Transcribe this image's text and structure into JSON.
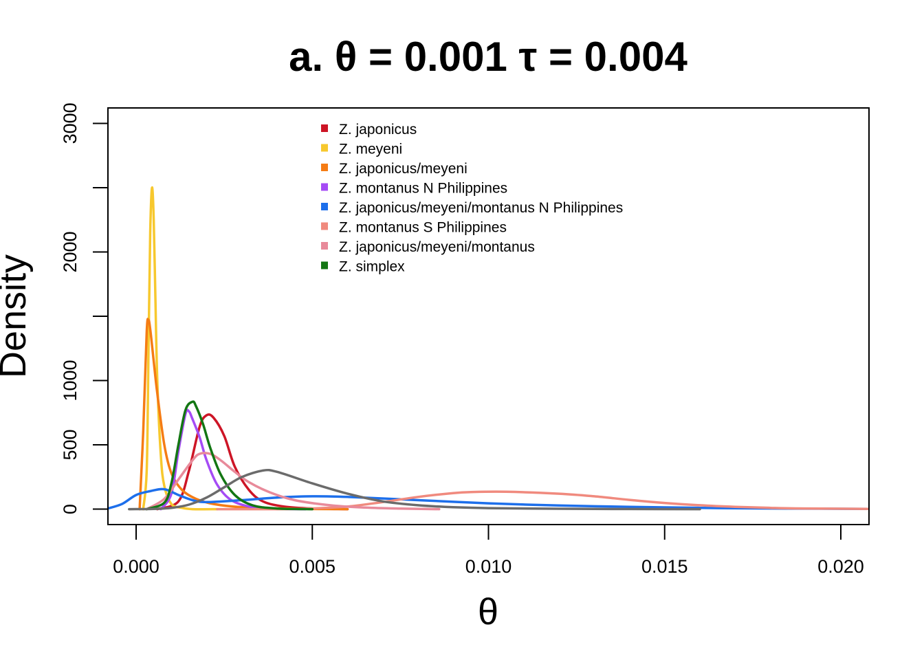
{
  "chart_data": {
    "type": "line",
    "title": "a. θ = 0.001 τ = 0.004",
    "xlabel": "θ",
    "ylabel": "Density",
    "xlim": [
      -0.0008,
      0.0208
    ],
    "ylim": [
      -120,
      3120
    ],
    "x_ticks": [
      {
        "value": 0.0,
        "label": "0.000"
      },
      {
        "value": 0.005,
        "label": "0.005"
      },
      {
        "value": 0.01,
        "label": "0.010"
      },
      {
        "value": 0.015,
        "label": "0.015"
      },
      {
        "value": 0.02,
        "label": "0.020"
      }
    ],
    "y_ticks": [
      {
        "value": 0,
        "label": "0"
      },
      {
        "value": 500,
        "label": "500"
      },
      {
        "value": 1000,
        "label": "1000"
      },
      {
        "value": 1500,
        "label": ""
      },
      {
        "value": 2000,
        "label": "2000"
      },
      {
        "value": 2500,
        "label": ""
      },
      {
        "value": 3000,
        "label": "3000"
      }
    ],
    "grid": false,
    "legend_position": "top-center",
    "series": [
      {
        "name": "Z. japonicus",
        "color": "#CD1526",
        "x": [
          0.0006,
          0.0012,
          0.0015,
          0.0018,
          0.002,
          0.0022,
          0.0025,
          0.0028,
          0.0032,
          0.0036,
          0.0042,
          0.005,
          0.006
        ],
        "y": [
          0,
          60,
          300,
          640,
          730,
          710,
          570,
          330,
          150,
          60,
          20,
          5,
          0
        ]
      },
      {
        "name": "Z. meyeni",
        "color": "#F7C82E",
        "x": [
          0.0002,
          0.0003,
          0.00035,
          0.0004,
          0.00045,
          0.0005,
          0.00055,
          0.0006,
          0.0007,
          0.0008,
          0.001,
          0.0013,
          0.0016,
          0.0023
        ],
        "y": [
          0,
          300,
          1200,
          2150,
          2500,
          2250,
          1600,
          1000,
          420,
          180,
          40,
          10,
          0,
          0
        ]
      },
      {
        "name": "Z. japonicus/meyeni",
        "color": "#F57C14",
        "x": [
          0.0001,
          0.0002,
          0.0003,
          0.00035,
          0.0004,
          0.0005,
          0.0006,
          0.0008,
          0.001,
          0.0013,
          0.0017,
          0.0022,
          0.003,
          0.0045,
          0.006
        ],
        "y": [
          0,
          600,
          1380,
          1470,
          1400,
          1150,
          900,
          500,
          280,
          150,
          80,
          40,
          15,
          3,
          0
        ]
      },
      {
        "name": "Z. montanus N Philippines",
        "color": "#A54BF5",
        "x": [
          0.0007,
          0.001,
          0.0012,
          0.0014,
          0.0015,
          0.0016,
          0.0018,
          0.002,
          0.0023,
          0.0027,
          0.0033,
          0.004,
          0.0048
        ],
        "y": [
          0,
          120,
          450,
          740,
          760,
          700,
          560,
          380,
          190,
          70,
          15,
          3,
          0
        ]
      },
      {
        "name": "Z. japonicus/meyeni/montanus N Philippines",
        "color": "#1D6FEB",
        "x": [
          -0.0008,
          -0.0004,
          0.0,
          0.0004,
          0.0008,
          0.0012,
          0.0016,
          0.002,
          0.003,
          0.004,
          0.005,
          0.006,
          0.008,
          0.01,
          0.012,
          0.014,
          0.016,
          0.018,
          0.0208
        ],
        "y": [
          5,
          40,
          110,
          140,
          155,
          110,
          70,
          55,
          70,
          90,
          100,
          95,
          70,
          45,
          28,
          18,
          10,
          5,
          2
        ]
      },
      {
        "name": "Z. montanus S Philippines",
        "color": "#F08A7E",
        "x": [
          0.0023,
          0.004,
          0.005,
          0.006,
          0.007,
          0.008,
          0.009,
          0.0095,
          0.0105,
          0.012,
          0.013,
          0.014,
          0.015,
          0.016,
          0.017,
          0.018,
          0.019,
          0.0208
        ],
        "y": [
          0,
          0,
          5,
          20,
          55,
          95,
          125,
          133,
          135,
          120,
          100,
          72,
          48,
          30,
          18,
          10,
          5,
          2
        ]
      },
      {
        "name": "Z. japonicus/meyeni/montanus",
        "color": "#E88A9A",
        "x": [
          0.0003,
          0.0008,
          0.0012,
          0.0016,
          0.0018,
          0.0021,
          0.0024,
          0.0028,
          0.0032,
          0.0038,
          0.0045,
          0.0055,
          0.0065,
          0.0075,
          0.0086
        ],
        "y": [
          0,
          80,
          230,
          380,
          430,
          430,
          380,
          290,
          210,
          130,
          70,
          30,
          12,
          4,
          0
        ]
      },
      {
        "name": "Z. simplex",
        "color": "#137613",
        "x": [
          0.0003,
          0.0008,
          0.001,
          0.0012,
          0.0014,
          0.0016,
          0.0017,
          0.0019,
          0.0021,
          0.0024,
          0.0028,
          0.0033,
          0.004,
          0.005
        ],
        "y": [
          0,
          50,
          200,
          500,
          770,
          835,
          800,
          660,
          480,
          270,
          110,
          30,
          5,
          0
        ]
      },
      {
        "color": "#6B6B6B",
        "x": [
          -0.0002,
          0.0005,
          0.001,
          0.0015,
          0.002,
          0.0025,
          0.003,
          0.0036,
          0.004,
          0.005,
          0.006,
          0.007,
          0.008,
          0.009,
          0.01,
          0.012,
          0.014,
          0.016
        ],
        "y": [
          0,
          2,
          10,
          35,
          90,
          170,
          250,
          300,
          290,
          200,
          120,
          60,
          30,
          15,
          8,
          3,
          1,
          0
        ]
      }
    ]
  }
}
